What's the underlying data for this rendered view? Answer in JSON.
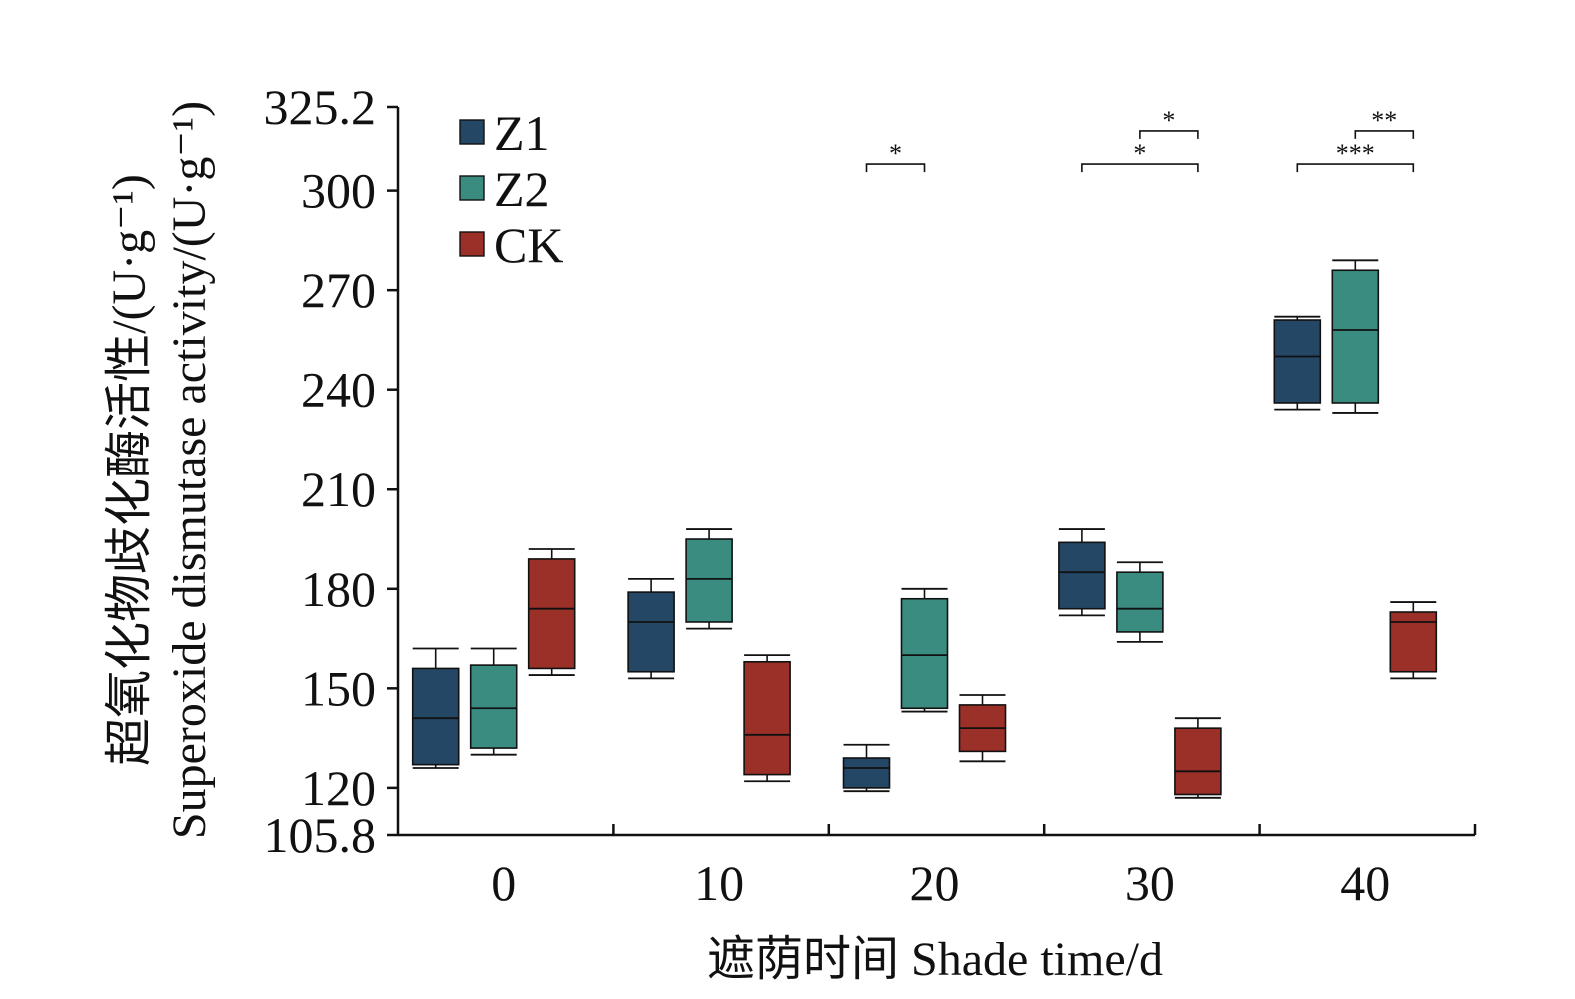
{
  "chart_data": {
    "type": "boxplot",
    "xlabel": "遮荫时间 Shade time/d",
    "ylabel_cn": "超氧化物歧化酶活性/(U·g⁻¹)",
    "ylabel_en": "Superoxide dismutase activity/(U·g⁻¹)",
    "ylim": [
      105.8,
      325.2
    ],
    "yticks": [
      "105.8",
      "120",
      "150",
      "180",
      "210",
      "240",
      "270",
      "300",
      "325.2"
    ],
    "categories": [
      "0",
      "10",
      "20",
      "30",
      "40"
    ],
    "legend_position": "top-left",
    "series": [
      {
        "name": "Z1",
        "color": "#254766",
        "boxes": [
          {
            "whisker_low": 126,
            "q1": 127,
            "median": 141,
            "q3": 156,
            "whisker_high": 162
          },
          {
            "whisker_low": 153,
            "q1": 155,
            "median": 170,
            "q3": 179,
            "whisker_high": 183
          },
          {
            "whisker_low": 119,
            "q1": 120,
            "median": 126,
            "q3": 129,
            "whisker_high": 133
          },
          {
            "whisker_low": 172,
            "q1": 174,
            "median": 185,
            "q3": 194,
            "whisker_high": 198
          },
          {
            "whisker_low": 234,
            "q1": 236,
            "median": 250,
            "q3": 261,
            "whisker_high": 262
          }
        ]
      },
      {
        "name": "Z2",
        "color": "#3b8c80",
        "boxes": [
          {
            "whisker_low": 130,
            "q1": 132,
            "median": 144,
            "q3": 157,
            "whisker_high": 162
          },
          {
            "whisker_low": 168,
            "q1": 170,
            "median": 183,
            "q3": 195,
            "whisker_high": 198
          },
          {
            "whisker_low": 143,
            "q1": 144,
            "median": 160,
            "q3": 177,
            "whisker_high": 180
          },
          {
            "whisker_low": 164,
            "q1": 167,
            "median": 174,
            "q3": 185,
            "whisker_high": 188
          },
          {
            "whisker_low": 233,
            "q1": 236,
            "median": 258,
            "q3": 276,
            "whisker_high": 279
          }
        ]
      },
      {
        "name": "CK",
        "color": "#9b3028",
        "boxes": [
          {
            "whisker_low": 154,
            "q1": 156,
            "median": 174,
            "q3": 189,
            "whisker_high": 192
          },
          {
            "whisker_low": 122,
            "q1": 124,
            "median": 136,
            "q3": 158,
            "whisker_high": 160
          },
          {
            "whisker_low": 128,
            "q1": 131,
            "median": 138,
            "q3": 145,
            "whisker_high": 148
          },
          {
            "whisker_low": 117,
            "q1": 118,
            "median": 125,
            "q3": 138,
            "whisker_high": 141
          },
          {
            "whisker_low": 153,
            "q1": 155,
            "median": 170,
            "q3": 173,
            "whisker_high": 176
          }
        ]
      }
    ],
    "significance": [
      {
        "category": "20",
        "from_series": "Z1",
        "to_series": "Z2",
        "y": 308,
        "label": "*"
      },
      {
        "category": "30",
        "from_series": "Z1",
        "to_series": "CK",
        "y": 308,
        "label": "*"
      },
      {
        "category": "30",
        "from_series": "Z2",
        "to_series": "CK",
        "y": 318,
        "label": "*"
      },
      {
        "category": "40",
        "from_series": "Z1",
        "to_series": "CK",
        "y": 308,
        "label": "***"
      },
      {
        "category": "40",
        "from_series": "Z2",
        "to_series": "CK",
        "y": 318,
        "label": "**"
      }
    ]
  }
}
